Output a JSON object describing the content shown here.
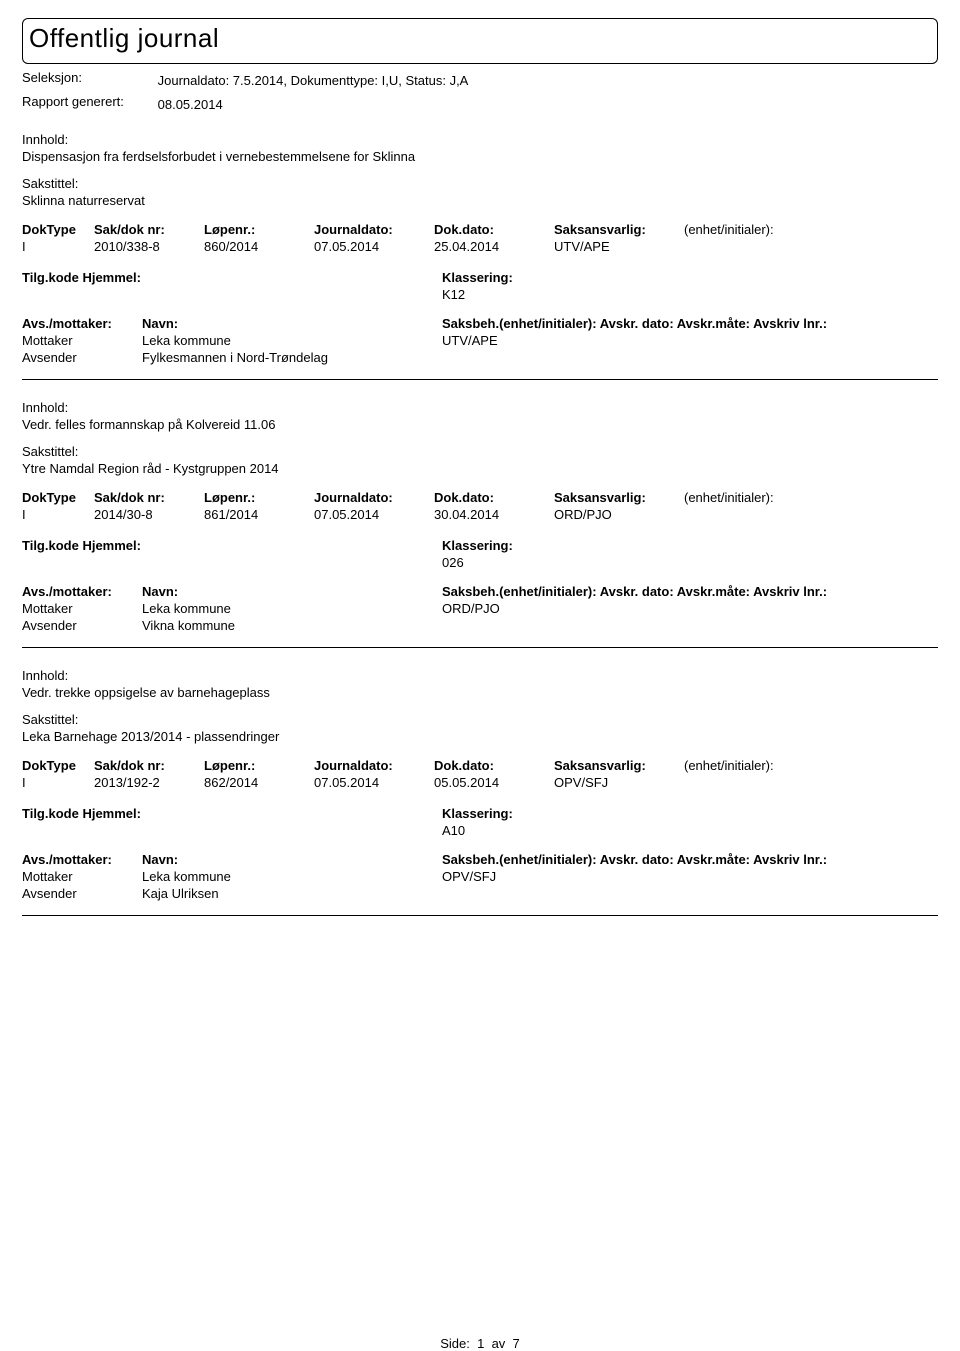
{
  "title": "Offentlig journal",
  "meta": {
    "seleksjon_label": "Seleksjon:",
    "seleksjon_value": "Journaldato: 7.5.2014, Dokumenttype: I,U, Status: J,A",
    "rapport_label": "Rapport generert:",
    "rapport_value": "08.05.2014"
  },
  "labels": {
    "innhold": "Innhold:",
    "sakstittel": "Sakstittel:",
    "doktype": "DokType",
    "sakdok": "Sak/dok nr:",
    "lopenr": "Løpenr.:",
    "journaldato": "Journaldato:",
    "dokdato": "Dok.dato:",
    "saksansvarlig": "Saksansvarlig:",
    "enhet_ini": "(enhet/initialer):",
    "tilgkode": "Tilg.kode",
    "hjemmel": "Hjemmel:",
    "klassering": "Klassering:",
    "avs_mottaker": "Avs./mottaker:",
    "navn": "Navn:",
    "saksbeh_line": "Saksbeh.(enhet/initialer): Avskr. dato:  Avskr.måte:  Avskriv lnr.:",
    "mottaker": "Mottaker",
    "avsender": "Avsender",
    "side": "Side:",
    "av": "av"
  },
  "entries": [
    {
      "innhold": "Dispensasjon fra ferdselsforbudet i vernebestemmelsene for Sklinna",
      "sakstittel": "Sklinna naturreservat",
      "doktype": "I",
      "sakdok": "2010/338-8",
      "lopenr": "860/2014",
      "journaldato": "07.05.2014",
      "dokdato": "25.04.2014",
      "saksansvarlig": "UTV/APE",
      "klassering": "K12",
      "mottaker_navn": "Leka kommune",
      "avsender_navn": "Fylkesmannen i Nord-Trøndelag",
      "saksbeh": "UTV/APE"
    },
    {
      "innhold": "Vedr. felles formannskap på Kolvereid 11.06",
      "sakstittel": "Ytre Namdal Region råd - Kystgruppen 2014",
      "doktype": "I",
      "sakdok": "2014/30-8",
      "lopenr": "861/2014",
      "journaldato": "07.05.2014",
      "dokdato": "30.04.2014",
      "saksansvarlig": "ORD/PJO",
      "klassering": "026",
      "mottaker_navn": "Leka kommune",
      "avsender_navn": "Vikna kommune",
      "saksbeh": "ORD/PJO"
    },
    {
      "innhold": "Vedr. trekke oppsigelse av barnehageplass",
      "sakstittel": "Leka Barnehage 2013/2014 - plassendringer",
      "doktype": "I",
      "sakdok": "2013/192-2",
      "lopenr": "862/2014",
      "journaldato": "07.05.2014",
      "dokdato": "05.05.2014",
      "saksansvarlig": "OPV/SFJ",
      "klassering": "A10",
      "mottaker_navn": "Leka kommune",
      "avsender_navn": "Kaja Ulriksen",
      "saksbeh": "OPV/SFJ"
    }
  ],
  "page": {
    "current": "1",
    "total": "7"
  }
}
